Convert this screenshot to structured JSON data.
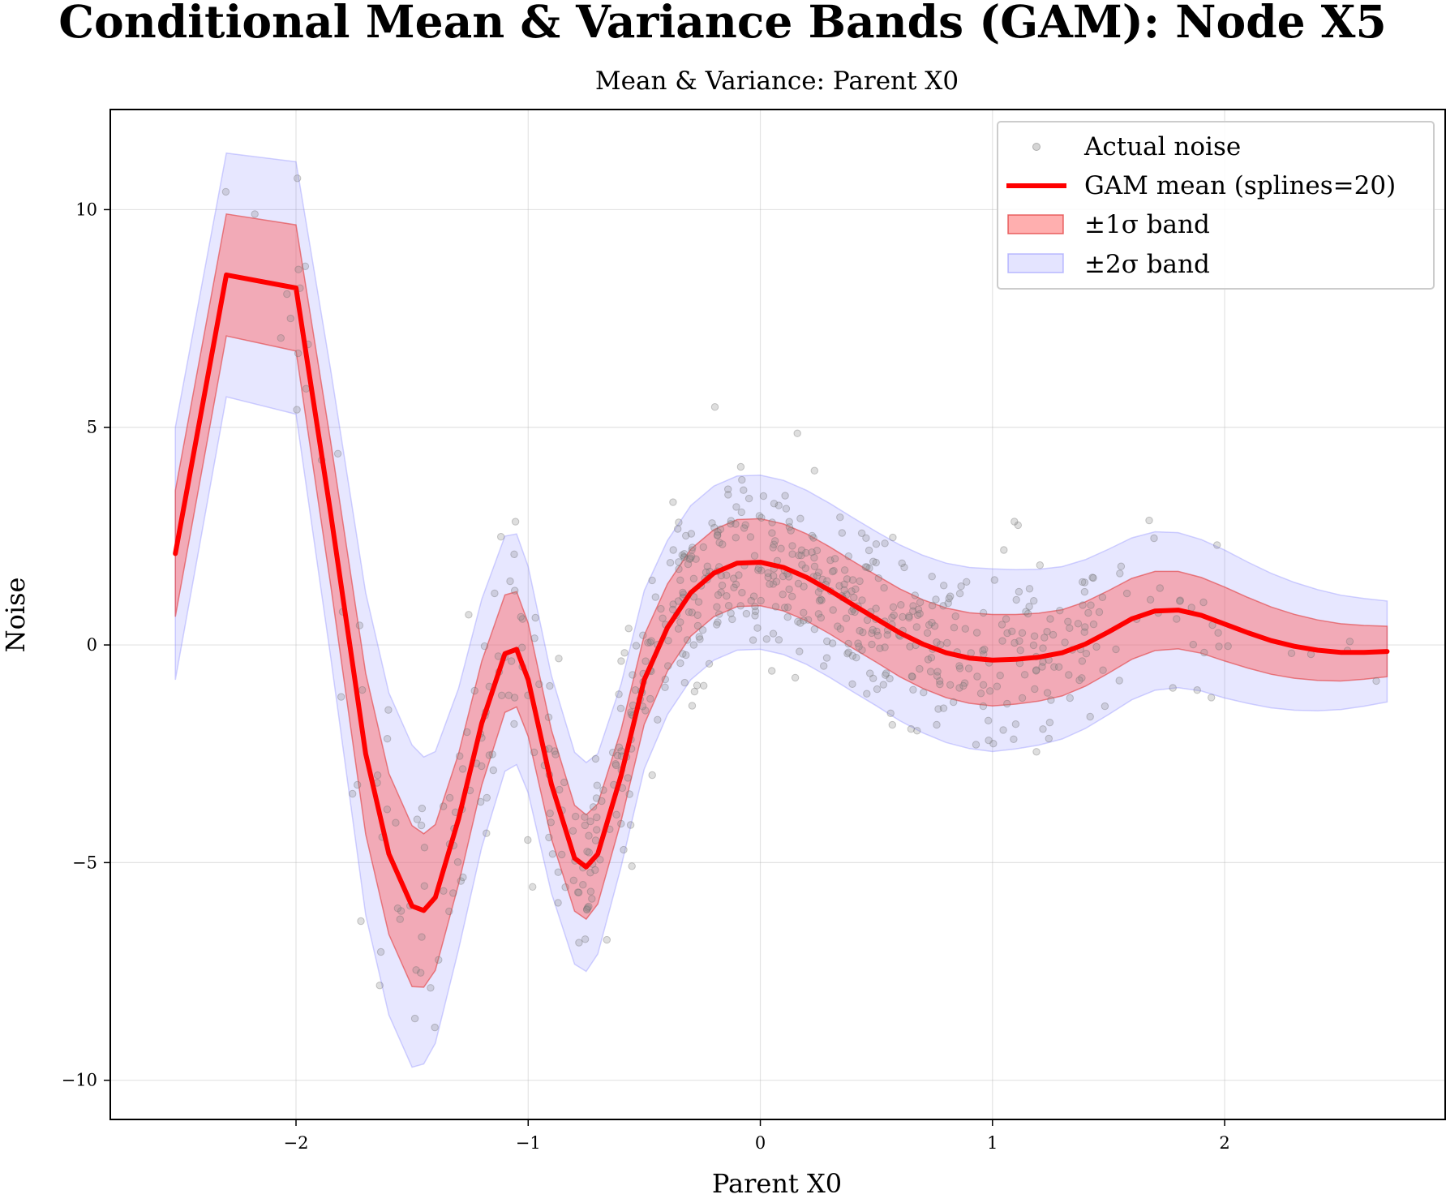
{
  "chart_data": {
    "type": "line",
    "title": "Conditional Mean & Variance Bands (GAM): Node X5",
    "subtitle": "Mean & Variance: Parent X0",
    "xlabel": "Parent X0",
    "ylabel": "Noise",
    "xlim": [
      -2.8,
      2.95
    ],
    "ylim": [
      -10.9,
      12.3
    ],
    "x_ticks": [
      -2,
      -1,
      0,
      1,
      2
    ],
    "x_tick_labels": [
      "−2",
      "−1",
      "0",
      "1",
      "2"
    ],
    "y_ticks": [
      -10,
      -5,
      0,
      5,
      10
    ],
    "y_tick_labels": [
      "−10",
      "−5",
      "0",
      "5",
      "10"
    ],
    "grid": true,
    "legend_position": "top-right",
    "legend": [
      {
        "key": "scatter",
        "label": "Actual noise"
      },
      {
        "key": "mean",
        "label": "GAM mean (splines=20)"
      },
      {
        "key": "band1",
        "label": "±1σ band"
      },
      {
        "key": "band2",
        "label": "±2σ band"
      }
    ],
    "colors": {
      "mean": "#ff0000",
      "band1_fill": "#ff6060",
      "band1_edge": "#e03030",
      "band2_fill": "#6a6aff",
      "band2_edge": "#8080ff",
      "scatter": "#888888"
    },
    "mean_curve": {
      "x": [
        -2.52,
        -2.3,
        -2.0,
        -1.85,
        -1.7,
        -1.6,
        -1.5,
        -1.45,
        -1.4,
        -1.3,
        -1.2,
        -1.1,
        -1.05,
        -1.0,
        -0.9,
        -0.8,
        -0.75,
        -0.7,
        -0.6,
        -0.5,
        -0.4,
        -0.3,
        -0.2,
        -0.1,
        0.0,
        0.1,
        0.2,
        0.3,
        0.4,
        0.5,
        0.6,
        0.7,
        0.8,
        0.9,
        1.0,
        1.1,
        1.2,
        1.3,
        1.4,
        1.5,
        1.6,
        1.7,
        1.8,
        1.9,
        2.0,
        2.1,
        2.2,
        2.3,
        2.4,
        2.5,
        2.6,
        2.7
      ],
      "y": [
        2.1,
        8.5,
        8.2,
        3.0,
        -2.5,
        -4.8,
        -6.0,
        -6.1,
        -5.8,
        -4.0,
        -1.8,
        -0.2,
        -0.1,
        -0.8,
        -3.2,
        -4.9,
        -5.1,
        -4.8,
        -3.0,
        -0.8,
        0.4,
        1.2,
        1.65,
        1.88,
        1.9,
        1.78,
        1.55,
        1.25,
        0.92,
        0.6,
        0.28,
        0.02,
        -0.18,
        -0.3,
        -0.35,
        -0.33,
        -0.28,
        -0.18,
        0.02,
        0.3,
        0.6,
        0.78,
        0.8,
        0.68,
        0.48,
        0.28,
        0.1,
        -0.03,
        -0.12,
        -0.17,
        -0.17,
        -0.15
      ]
    },
    "sigma_curve": {
      "x": [
        -2.52,
        -2.3,
        -2.0,
        -1.7,
        -1.5,
        -1.3,
        -1.1,
        -0.9,
        -0.75,
        -0.6,
        -0.4,
        -0.2,
        0.0,
        0.5,
        1.0,
        1.5,
        2.0,
        2.7
      ],
      "y": [
        1.45,
        1.4,
        1.45,
        1.85,
        1.85,
        1.5,
        1.35,
        1.25,
        1.2,
        1.05,
        1.0,
        1.0,
        1.0,
        1.0,
        1.05,
        0.95,
        0.85,
        0.58
      ]
    },
    "scatter_model": {
      "n_points": 700,
      "x_range": [
        -2.52,
        2.7
      ],
      "spread_factor": 1.0
    }
  }
}
